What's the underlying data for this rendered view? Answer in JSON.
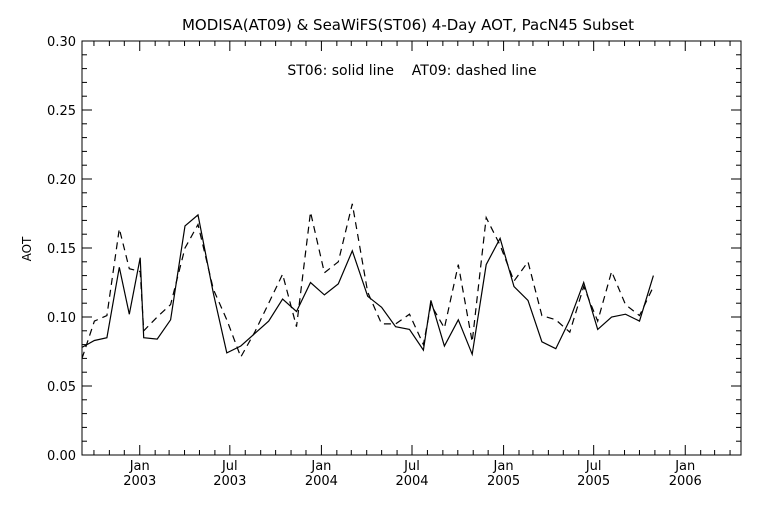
{
  "chart_data": {
    "type": "line",
    "title": "MODISA(AT09) & SeaWiFS(ST06) 4-Day AOT, PacN45 Subset",
    "annotation": "ST06: solid line    AT09: dashed line",
    "xlabel": "",
    "ylabel": "AOT",
    "xlim": [
      "2002-09-07",
      "2006-04-23"
    ],
    "ylim": [
      0.0,
      0.3
    ],
    "grid": false,
    "y_ticks": [
      "0.00",
      "0.05",
      "0.10",
      "0.15",
      "0.20",
      "0.25",
      "0.30"
    ],
    "x_ticks": [
      {
        "date": "2003-01-01",
        "month": "Jan",
        "year": "2003"
      },
      {
        "date": "2003-07-01",
        "month": "Jul",
        "year": "2003"
      },
      {
        "date": "2004-01-01",
        "month": "Jan",
        "year": "2004"
      },
      {
        "date": "2004-07-01",
        "month": "Jul",
        "year": "2004"
      },
      {
        "date": "2005-01-01",
        "month": "Jan",
        "year": "2005"
      },
      {
        "date": "2005-07-01",
        "month": "Jul",
        "year": "2005"
      },
      {
        "date": "2006-01-01",
        "month": "Jan",
        "year": "2006"
      }
    ],
    "series": [
      {
        "name": "ST06",
        "style": "solid",
        "color": "#000000",
        "points": [
          [
            "2002-09-07",
            0.078
          ],
          [
            "2002-10-02",
            0.083
          ],
          [
            "2002-10-27",
            0.085
          ],
          [
            "2002-11-21",
            0.136
          ],
          [
            "2002-12-11",
            0.102
          ],
          [
            "2003-01-02",
            0.143
          ],
          [
            "2003-01-09",
            0.085
          ],
          [
            "2003-02-05",
            0.084
          ],
          [
            "2003-03-04",
            0.098
          ],
          [
            "2003-04-02",
            0.166
          ],
          [
            "2003-04-28",
            0.174
          ],
          [
            "2003-05-29",
            0.117
          ],
          [
            "2003-06-25",
            0.074
          ],
          [
            "2003-07-23",
            0.079
          ],
          [
            "2003-08-20",
            0.088
          ],
          [
            "2003-09-17",
            0.097
          ],
          [
            "2003-10-15",
            0.113
          ],
          [
            "2003-11-12",
            0.104
          ],
          [
            "2003-12-10",
            0.125
          ],
          [
            "2004-01-07",
            0.116
          ],
          [
            "2004-02-04",
            0.124
          ],
          [
            "2004-03-03",
            0.148
          ],
          [
            "2004-04-03",
            0.115
          ],
          [
            "2004-05-01",
            0.107
          ],
          [
            "2004-05-29",
            0.093
          ],
          [
            "2004-06-26",
            0.091
          ],
          [
            "2004-07-24",
            0.076
          ],
          [
            "2004-08-08",
            0.112
          ],
          [
            "2004-09-04",
            0.079
          ],
          [
            "2004-10-02",
            0.098
          ],
          [
            "2004-10-30",
            0.073
          ],
          [
            "2004-11-27",
            0.138
          ],
          [
            "2004-12-25",
            0.157
          ],
          [
            "2005-01-22",
            0.122
          ],
          [
            "2005-02-19",
            0.112
          ],
          [
            "2005-03-19",
            0.082
          ],
          [
            "2005-04-16",
            0.077
          ],
          [
            "2005-05-14",
            0.098
          ],
          [
            "2005-06-11",
            0.125
          ],
          [
            "2005-07-09",
            0.091
          ],
          [
            "2005-08-06",
            0.1
          ],
          [
            "2005-09-03",
            0.102
          ],
          [
            "2005-10-01",
            0.097
          ],
          [
            "2005-10-29",
            0.13
          ]
        ]
      },
      {
        "name": "AT09",
        "style": "dashed",
        "color": "#000000",
        "points": [
          [
            "2002-09-07",
            0.07
          ],
          [
            "2002-10-02",
            0.097
          ],
          [
            "2002-10-27",
            0.101
          ],
          [
            "2002-11-21",
            0.164
          ],
          [
            "2002-12-11",
            0.135
          ],
          [
            "2003-01-02",
            0.133
          ],
          [
            "2003-01-09",
            0.09
          ],
          [
            "2003-02-05",
            0.1
          ],
          [
            "2003-03-04",
            0.109
          ],
          [
            "2003-04-02",
            0.15
          ],
          [
            "2003-04-28",
            0.167
          ],
          [
            "2003-05-29",
            0.12
          ],
          [
            "2003-06-25",
            0.098
          ],
          [
            "2003-07-23",
            0.071
          ],
          [
            "2003-08-20",
            0.089
          ],
          [
            "2003-09-17",
            0.11
          ],
          [
            "2003-10-15",
            0.131
          ],
          [
            "2003-11-12",
            0.093
          ],
          [
            "2003-12-10",
            0.176
          ],
          [
            "2004-01-07",
            0.132
          ],
          [
            "2004-02-04",
            0.14
          ],
          [
            "2004-03-03",
            0.182
          ],
          [
            "2004-04-03",
            0.118
          ],
          [
            "2004-05-01",
            0.095
          ],
          [
            "2004-05-29",
            0.095
          ],
          [
            "2004-06-26",
            0.102
          ],
          [
            "2004-07-24",
            0.08
          ],
          [
            "2004-08-08",
            0.109
          ],
          [
            "2004-09-04",
            0.092
          ],
          [
            "2004-10-02",
            0.138
          ],
          [
            "2004-10-30",
            0.082
          ],
          [
            "2004-11-27",
            0.172
          ],
          [
            "2004-12-25",
            0.152
          ],
          [
            "2005-01-22",
            0.126
          ],
          [
            "2005-02-19",
            0.14
          ],
          [
            "2005-03-19",
            0.101
          ],
          [
            "2005-04-16",
            0.098
          ],
          [
            "2005-05-14",
            0.089
          ],
          [
            "2005-06-11",
            0.122
          ],
          [
            "2005-07-09",
            0.097
          ],
          [
            "2005-08-06",
            0.133
          ],
          [
            "2005-09-03",
            0.109
          ],
          [
            "2005-10-01",
            0.101
          ],
          [
            "2005-10-29",
            0.122
          ]
        ]
      }
    ]
  }
}
